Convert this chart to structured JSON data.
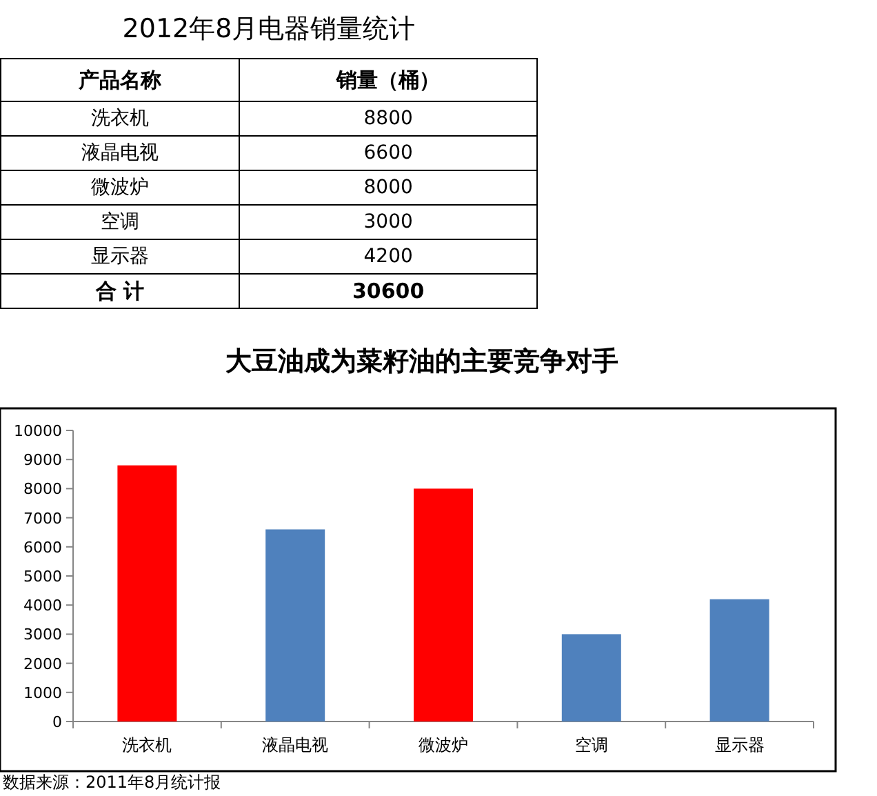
{
  "chart_data": {
    "type": "bar",
    "title": "大豆油成为菜籽油的主要竞争对手",
    "categories": [
      "洗衣机",
      "液晶电视",
      "微波炉",
      "空调",
      "显示器"
    ],
    "values": [
      8800,
      6600,
      8000,
      3000,
      4200
    ],
    "colors": [
      "#ff0000",
      "#4f81bd",
      "#ff0000",
      "#4f81bd",
      "#4f81bd"
    ],
    "ylim": [
      0,
      10000
    ],
    "yticks": [
      0,
      1000,
      2000,
      3000,
      4000,
      5000,
      6000,
      7000,
      8000,
      9000,
      10000
    ],
    "annotations": [
      "2012年8月电器销量统计",
      "产品名称",
      "销量（桶）",
      "8800",
      "6600",
      "8000",
      "3000",
      "4200",
      "合 计",
      "30600",
      "数据来源：2011年8月统计报"
    ]
  }
}
